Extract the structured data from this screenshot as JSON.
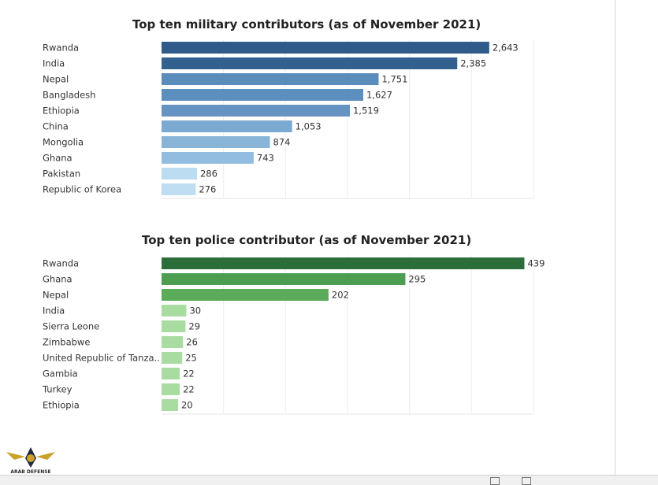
{
  "charts": [
    {
      "title": "Top ten military contributors (as of November 2021)",
      "chart_data": {
        "type": "bar",
        "orientation": "horizontal",
        "title": "Top ten military contributors (as of November 2021)",
        "categories": [
          "Rwanda",
          "India",
          "Nepal",
          "Bangladesh",
          "Ethiopia",
          "China",
          "Mongolia",
          "Ghana",
          "Pakistan",
          "Republic of Korea"
        ],
        "values": [
          2643,
          2385,
          1751,
          1627,
          1519,
          1053,
          874,
          743,
          286,
          276
        ],
        "value_labels": [
          "2,643",
          "2,385",
          "1,751",
          "1,627",
          "1,519",
          "1,053",
          "874",
          "743",
          "286",
          "276"
        ],
        "xlim": [
          0,
          3000
        ],
        "grid": true,
        "colors": [
          "#2e5b8a",
          "#32618f",
          "#5a8cbc",
          "#5d8fbe",
          "#6594c2",
          "#7ba9d1",
          "#88b4d8",
          "#92bde0",
          "#bcdcf1",
          "#bfdef2"
        ]
      }
    },
    {
      "title": "Top ten police contributor (as of November 2021)",
      "chart_data": {
        "type": "bar",
        "orientation": "horizontal",
        "title": "Top ten police contributor (as of November 2021)",
        "categories": [
          "Rwanda",
          "Ghana",
          "Nepal",
          "India",
          "Sierra Leone",
          "Zimbabwe",
          "United Republic of Tanza..",
          "Gambia",
          "Turkey",
          "Ethiopia"
        ],
        "values": [
          439,
          295,
          202,
          30,
          29,
          26,
          25,
          22,
          22,
          20
        ],
        "value_labels": [
          "439",
          "295",
          "202",
          "30",
          "29",
          "26",
          "25",
          "22",
          "22",
          "20"
        ],
        "xlim": [
          0,
          450
        ],
        "grid": true,
        "colors": [
          "#2c6e3a",
          "#4c9d52",
          "#5aab5a",
          "#a9dca0",
          "#a9dca0",
          "#a9dca0",
          "#a9dca0",
          "#a9dca0",
          "#a9dca0",
          "#a9dca0"
        ]
      }
    }
  ],
  "watermark": {
    "text": "ARAB DEFENSE FORUM"
  }
}
